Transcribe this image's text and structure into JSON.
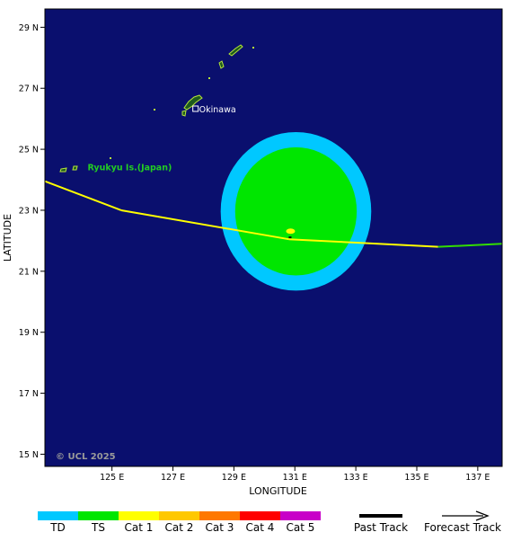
{
  "map": {
    "background": "#0a0f6e",
    "lat_range": [
      14.6,
      29.6
    ],
    "lon_range": [
      122.8,
      137.8
    ],
    "lat_ticks": [
      {
        "value": 29,
        "label": "29 N"
      },
      {
        "value": 27,
        "label": "27 N"
      },
      {
        "value": 25,
        "label": "25 N"
      },
      {
        "value": 23,
        "label": "23 N"
      },
      {
        "value": 21,
        "label": "21 N"
      },
      {
        "value": 19,
        "label": "19 N"
      },
      {
        "value": 17,
        "label": "17 N"
      },
      {
        "value": 15,
        "label": "15 N"
      }
    ],
    "lon_ticks": [
      {
        "value": 125,
        "label": "125 E"
      },
      {
        "value": 127,
        "label": "127 E"
      },
      {
        "value": 129,
        "label": "129 E"
      },
      {
        "value": 131,
        "label": "131 E"
      },
      {
        "value": 133,
        "label": "133 E"
      },
      {
        "value": 135,
        "label": "135 E"
      },
      {
        "value": 137,
        "label": "137 E"
      }
    ],
    "xlabel": "LONGITUDE",
    "ylabel": "LATITUDE",
    "copyright": "© UCL 2025",
    "places": [
      {
        "name": "Okinawa",
        "lat": 26.3,
        "lon": 127.8
      },
      {
        "name": "Ryukyu Is.(Japan)",
        "lat": 24.4,
        "lon": 124.2
      }
    ]
  },
  "storm": {
    "center": {
      "lat": 22.05,
      "lon": 130.8
    },
    "wind_radii": [
      {
        "category": "TD",
        "radius_deg": 2.6,
        "color": "#00c8ff"
      },
      {
        "category": "TS",
        "radius_deg": 2.1,
        "color": "#00e600"
      }
    ],
    "core_color": "#ffff00"
  },
  "track": {
    "past_color": "#ffff00",
    "forecast_color": "#33dd00",
    "points": [
      {
        "lat": 23.95,
        "lon": 122.8,
        "segment": "past"
      },
      {
        "lat": 23.0,
        "lon": 125.3,
        "segment": "past"
      },
      {
        "lat": 22.05,
        "lon": 130.8,
        "segment": "past"
      },
      {
        "lat": 21.8,
        "lon": 135.7,
        "segment": "past"
      },
      {
        "lat": 21.9,
        "lon": 137.8,
        "segment": "forecast"
      }
    ]
  },
  "legend": {
    "categories": [
      {
        "label": "TD",
        "color": "#00c8ff"
      },
      {
        "label": "TS",
        "color": "#00e600"
      },
      {
        "label": "Cat 1",
        "color": "#ffff00"
      },
      {
        "label": "Cat 2",
        "color": "#ffc800"
      },
      {
        "label": "Cat 3",
        "color": "#ff7800"
      },
      {
        "label": "Cat 4",
        "color": "#ff0000"
      },
      {
        "label": "Cat 5",
        "color": "#c800c8"
      }
    ],
    "past_track_label": "Past Track",
    "forecast_track_label": "Forecast Track"
  }
}
